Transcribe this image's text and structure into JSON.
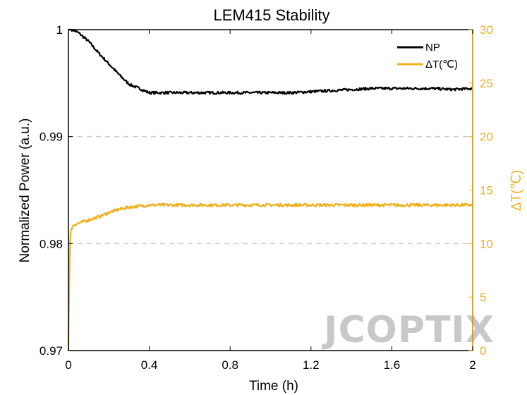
{
  "chart_data": {
    "type": "line",
    "title": "LEM415 Stability",
    "xlabel": "Time (h)",
    "ylabel": "Normalized Power (a.u.)",
    "y2label": "ΔT(℃)",
    "xlim": [
      0,
      2
    ],
    "ylim": [
      0.97,
      1
    ],
    "y2lim": [
      0,
      30
    ],
    "xticks": [
      "0",
      "0.4",
      "0.8",
      "1.2",
      "1.6",
      "2"
    ],
    "xtick_values": [
      0,
      0.4,
      0.8,
      1.2,
      1.6,
      2
    ],
    "yticks": [
      "0.97",
      "0.98",
      "0.99",
      "1"
    ],
    "ytick_values": [
      0.97,
      0.98,
      0.99,
      1
    ],
    "y2ticks": [
      "0",
      "5",
      "10",
      "15",
      "20",
      "25",
      "30"
    ],
    "y2tick_values": [
      0,
      5,
      10,
      15,
      20,
      25,
      30
    ],
    "grid": "dashed horizontal at 0.98 and 0.99",
    "legend_position": "top-right",
    "series": [
      {
        "name": "NP",
        "axis": "left",
        "color": "#000000",
        "x": [
          0,
          0.02,
          0.05,
          0.1,
          0.15,
          0.2,
          0.25,
          0.3,
          0.35,
          0.4,
          0.5,
          0.6,
          0.7,
          0.8,
          0.9,
          1.0,
          1.1,
          1.2,
          1.3,
          1.4,
          1.5,
          1.6,
          1.7,
          1.8,
          1.9,
          2.0
        ],
        "values": [
          1.0,
          1.0,
          0.9997,
          0.9989,
          0.9978,
          0.9968,
          0.9958,
          0.9949,
          0.9945,
          0.9941,
          0.9941,
          0.9941,
          0.9941,
          0.9941,
          0.9941,
          0.9941,
          0.9941,
          0.9942,
          0.9943,
          0.9944,
          0.9945,
          0.9945,
          0.9945,
          0.9945,
          0.9944,
          0.9945
        ]
      },
      {
        "name": "ΔT(℃)",
        "axis": "right",
        "color": "#f0b020",
        "x": [
          0,
          0.004,
          0.008,
          0.012,
          0.02,
          0.03,
          0.05,
          0.1,
          0.15,
          0.2,
          0.25,
          0.3,
          0.35,
          0.4,
          0.5,
          0.6,
          0.7,
          0.8,
          0.9,
          1.0,
          1.1,
          1.2,
          1.3,
          1.4,
          1.5,
          1.6,
          1.7,
          1.8,
          1.9,
          2.0
        ],
        "values": [
          0,
          6,
          10.5,
          11.3,
          11.6,
          11.8,
          11.9,
          12.2,
          12.5,
          12.9,
          13.2,
          13.4,
          13.5,
          13.6,
          13.6,
          13.6,
          13.6,
          13.6,
          13.6,
          13.6,
          13.6,
          13.6,
          13.6,
          13.6,
          13.6,
          13.6,
          13.6,
          13.6,
          13.6,
          13.6
        ]
      }
    ]
  },
  "watermark": "JCOPTIX"
}
